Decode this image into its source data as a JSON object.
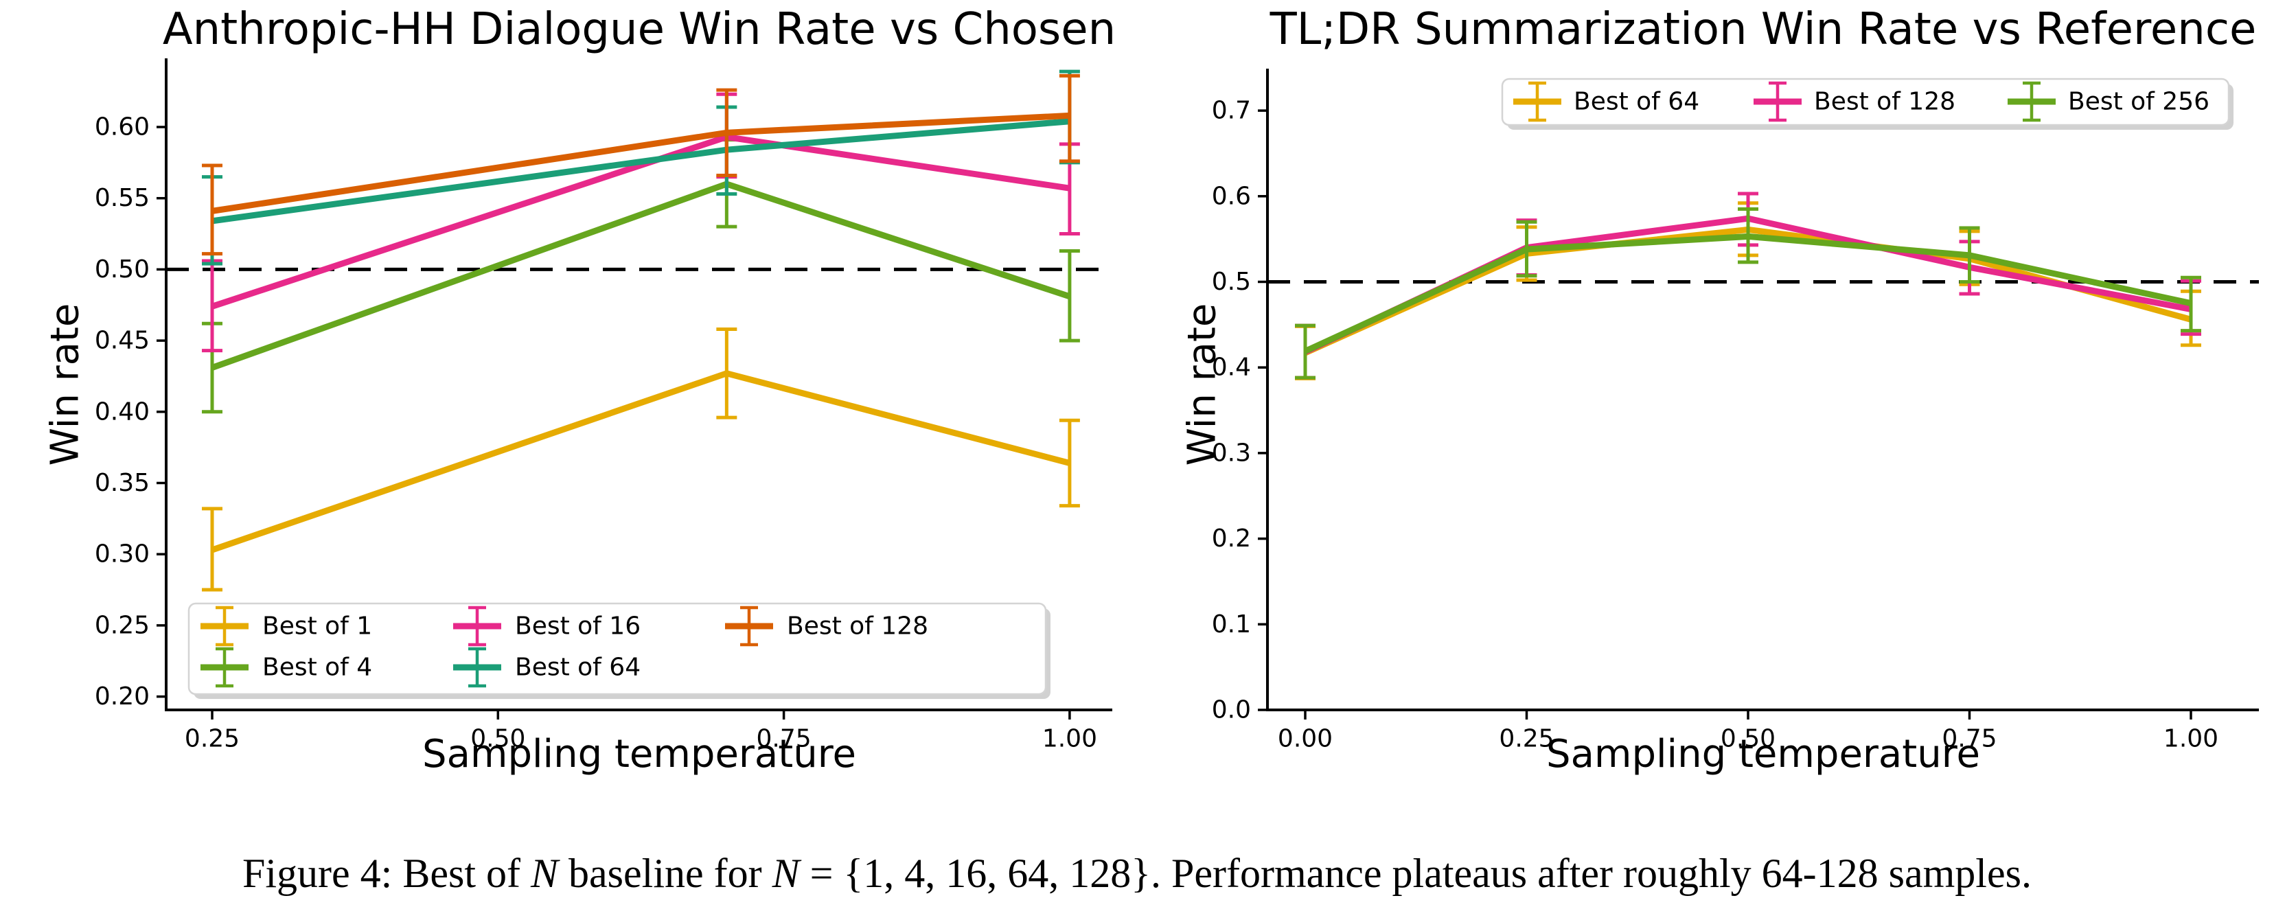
{
  "figure": {
    "caption": {
      "full_text": "Figure 4: Best of N baseline for N = {1, 4, 16, 64, 128}. Performance plateaus after roughly 64-128 samples.",
      "parts": [
        {
          "text": "Figure 4: Best of ",
          "style": "roman"
        },
        {
          "text": "N",
          "style": "italic"
        },
        {
          "text": " baseline for ",
          "style": "roman"
        },
        {
          "text": "N",
          "style": "italic"
        },
        {
          "text": " = {1, 4, 16, 64, 128}. Performance plateaus after roughly 64-128 samples.",
          "style": "roman"
        }
      ]
    }
  },
  "colors": {
    "best_of_1": "#E6AB02",
    "best_of_4": "#66A61E",
    "best_of_16": "#E7298A",
    "best_of_64_left": "#1B9E77",
    "best_of_128_left": "#D95F02",
    "best_of_64_right": "#E6AB02",
    "best_of_128_right": "#E7298A",
    "best_of_256": "#66A61E",
    "reference_line": "#000000",
    "axis": "#000000"
  },
  "chart_data": [
    {
      "type": "line",
      "title": "Anthropic-HH Dialogue Win Rate vs Chosen",
      "xlabel": "Sampling temperature",
      "ylabel": "Win rate",
      "grid": false,
      "legend_position": "lower left inside",
      "xlim": [
        0.21,
        1.04
      ],
      "ylim": [
        0.19,
        0.648
      ],
      "xticks": {
        "values": [
          0.25,
          0.5,
          0.75,
          1.0
        ],
        "labels": [
          "0.25",
          "0.50",
          "0.75",
          "1.00"
        ]
      },
      "yticks": {
        "values": [
          0.2,
          0.25,
          0.3,
          0.35,
          0.4,
          0.45,
          0.5,
          0.55,
          0.6
        ],
        "labels": [
          "0.20",
          "0.25",
          "0.30",
          "0.35",
          "0.40",
          "0.45",
          "0.50",
          "0.55",
          "0.60"
        ]
      },
      "reference_line": {
        "y": 0.5,
        "style": "dashed",
        "color": "#000000"
      },
      "x": [
        0.25,
        0.7,
        1.0
      ],
      "series": [
        {
          "name": "Best of 1",
          "color": "#E6AB02",
          "y": [
            0.303,
            0.427,
            0.364
          ],
          "err_lo": [
            0.275,
            0.396,
            0.334
          ],
          "err_hi": [
            0.332,
            0.458,
            0.394
          ]
        },
        {
          "name": "Best of 4",
          "color": "#66A61E",
          "y": [
            0.431,
            0.56,
            0.481
          ],
          "err_lo": [
            0.4,
            0.53,
            0.45
          ],
          "err_hi": [
            0.462,
            0.591,
            0.513
          ]
        },
        {
          "name": "Best of 16",
          "color": "#E7298A",
          "y": [
            0.474,
            0.593,
            0.557
          ],
          "err_lo": [
            0.443,
            0.565,
            0.525
          ],
          "err_hi": [
            0.506,
            0.623,
            0.588
          ]
        },
        {
          "name": "Best of 64",
          "color": "#1B9E77",
          "y": [
            0.534,
            0.584,
            0.604
          ],
          "err_lo": [
            0.504,
            0.553,
            0.575
          ],
          "err_hi": [
            0.565,
            0.614,
            0.639
          ]
        },
        {
          "name": "Best of 128",
          "color": "#D95F02",
          "y": [
            0.541,
            0.596,
            0.608
          ],
          "err_lo": [
            0.511,
            0.566,
            0.576
          ],
          "err_hi": [
            0.573,
            0.626,
            0.636
          ]
        }
      ]
    },
    {
      "type": "line",
      "title": "TL;DR Summarization Win Rate vs Reference",
      "xlabel": "Sampling temperature",
      "ylabel": "Win rate",
      "grid": false,
      "legend_position": "upper center inside",
      "xlim": [
        -0.045,
        1.077
      ],
      "ylim": [
        0.0,
        0.75
      ],
      "xticks": {
        "values": [
          0.0,
          0.25,
          0.5,
          0.75,
          1.0
        ],
        "labels": [
          "0.00",
          "0.25",
          "0.50",
          "0.75",
          "1.00"
        ]
      },
      "yticks": {
        "values": [
          0.0,
          0.1,
          0.2,
          0.3,
          0.4,
          0.5,
          0.6,
          0.7
        ],
        "labels": [
          "0.0",
          "0.1",
          "0.2",
          "0.3",
          "0.4",
          "0.5",
          "0.6",
          "0.7"
        ]
      },
      "reference_line": {
        "y": 0.5,
        "style": "dashed",
        "color": "#000000"
      },
      "x": [
        0.0,
        0.25,
        0.5,
        0.75,
        1.0
      ],
      "series": [
        {
          "name": "Best of 64",
          "color": "#E6AB02",
          "y": [
            0.417,
            0.533,
            0.561,
            0.527,
            0.456
          ],
          "err_lo": [
            0.387,
            0.502,
            0.531,
            0.497,
            0.426
          ],
          "err_hi": [
            0.448,
            0.564,
            0.592,
            0.559,
            0.489
          ]
        },
        {
          "name": "Best of 128",
          "color": "#E7298A",
          "y": [
            0.418,
            0.54,
            0.574,
            0.517,
            0.468
          ],
          "err_lo": [
            0.388,
            0.508,
            0.543,
            0.486,
            0.439
          ],
          "err_hi": [
            0.449,
            0.572,
            0.603,
            0.547,
            0.501
          ]
        },
        {
          "name": "Best of 256",
          "color": "#66A61E",
          "y": [
            0.419,
            0.538,
            0.553,
            0.531,
            0.475
          ],
          "err_lo": [
            0.388,
            0.507,
            0.523,
            0.5,
            0.443
          ],
          "err_hi": [
            0.449,
            0.57,
            0.585,
            0.563,
            0.505
          ]
        }
      ]
    }
  ]
}
